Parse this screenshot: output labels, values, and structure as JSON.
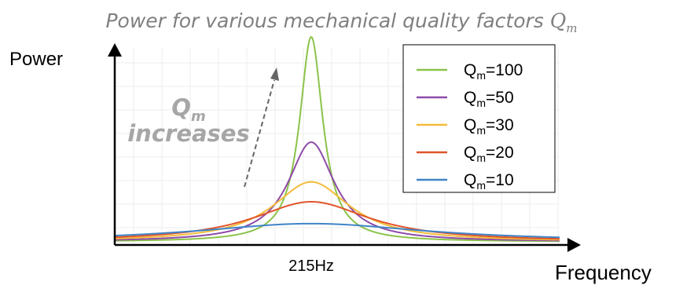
{
  "chart_data": {
    "type": "line",
    "title": "Power for various mechanical quality factors",
    "title_symbol": "Q",
    "title_symbol_sub": "m",
    "ylabel": "Power",
    "xlabel": "Frequency",
    "x_tick_labels": [
      "215Hz"
    ],
    "center_frequency_hz": 215,
    "grid": true,
    "legend_position": "top-right",
    "annotation": {
      "symbol": "Q",
      "symbol_sub": "m",
      "text": "increases"
    },
    "series": [
      {
        "name": "Q_m=100",
        "label_main": "Q",
        "label_sub": "m",
        "label_value": "=100",
        "q": 100,
        "color": "#8bc34a",
        "relative_peak": 1.0
      },
      {
        "name": "Q_m=50",
        "label_main": "Q",
        "label_sub": "m",
        "label_value": "=50",
        "q": 50,
        "color": "#8e4ba8",
        "relative_peak": 0.47
      },
      {
        "name": "Q_m=30",
        "label_main": "Q",
        "label_sub": "m",
        "label_value": "=30",
        "q": 30,
        "color": "#f2bc3b",
        "relative_peak": 0.27
      },
      {
        "name": "Q_m=20",
        "label_main": "Q",
        "label_sub": "m",
        "label_value": "=20",
        "q": 20,
        "color": "#e0552a",
        "relative_peak": 0.17
      },
      {
        "name": "Q_m=10",
        "label_main": "Q",
        "label_sub": "m",
        "label_value": "=10",
        "q": 10,
        "color": "#3f84c7",
        "relative_peak": 0.06
      }
    ]
  }
}
